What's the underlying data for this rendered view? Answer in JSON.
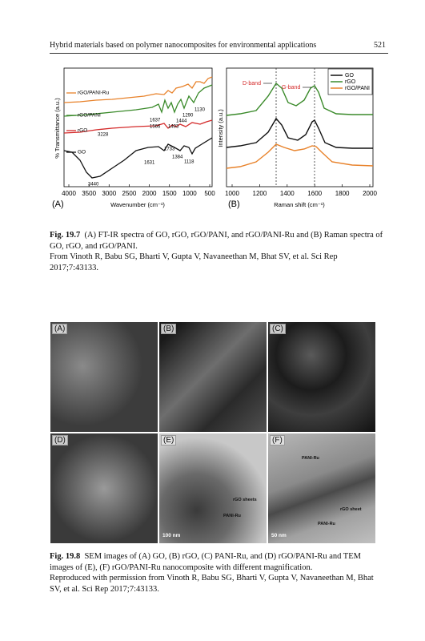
{
  "header": {
    "running_title": "Hybrid materials based on polymer nanocomposites for environmental applications",
    "page_number": "521"
  },
  "figure_19_7": {
    "panel_a": {
      "label": "(A)",
      "y_axis_label": "% Transmittance (a.u.)",
      "x_axis_label": "Wavenumber (cm⁻¹)",
      "x_ticks": [
        "4000",
        "3500",
        "3000",
        "2500",
        "2000",
        "1500",
        "1000",
        "500"
      ],
      "series_labels": [
        "rGO/PANI-Ru",
        "rGO/PANI",
        "rGO",
        "GO"
      ],
      "annotations": [
        "3228",
        "3440",
        "1733",
        "1631",
        "1384",
        "1118",
        "1637",
        "1566",
        "1493",
        "1444",
        "1290",
        "1130"
      ]
    },
    "panel_b": {
      "label": "(B)",
      "y_axis_label": "Intensity (a.u.)",
      "x_axis_label": "Raman shift (cm⁻¹)",
      "x_ticks": [
        "1000",
        "1200",
        "1400",
        "1600",
        "1800",
        "2000"
      ],
      "legend": [
        "GO",
        "rGO",
        "rGO/PANI"
      ],
      "annotations": [
        "D-band",
        "G-band"
      ]
    },
    "caption": {
      "label": "Fig. 19.7",
      "text": "(A) FT-IR spectra of GO, rGO, rGO/PANI, and rGO/PANI-Ru and (B) Raman spectra of GO, rGO, and rGO/PANI.",
      "credit": "From Vinoth R, Babu SG, Bharti V, Gupta V, Navaneethan M, Bhat SV, et al. Sci Rep 2017;7:43133."
    }
  },
  "figure_19_8": {
    "panels": [
      {
        "label": "(A)"
      },
      {
        "label": "(B)"
      },
      {
        "label": "(C)"
      },
      {
        "label": "(D)"
      },
      {
        "label": "(E)",
        "annotations": [
          "rGO sheets",
          "PANI-Ru"
        ],
        "scale_bar": "100 nm"
      },
      {
        "label": "(F)",
        "annotations": [
          "PANI-Ru",
          "rGO sheet",
          "PANI-Ru"
        ],
        "scale_bar": "50 nm"
      }
    ],
    "caption": {
      "label": "Fig. 19.8",
      "text": "SEM images of (A) GO, (B) rGO, (C) PANI-Ru, and (D) rGO/PANI-Ru and TEM images of (E), (F) rGO/PANI-Ru nanocomposite with different magnification.",
      "credit": "Reproduced with permission from Vinoth R, Babu SG, Bharti V, Gupta V, Navaneethan M, Bhat SV, et al. Sci Rep 2017;7:43133."
    }
  }
}
